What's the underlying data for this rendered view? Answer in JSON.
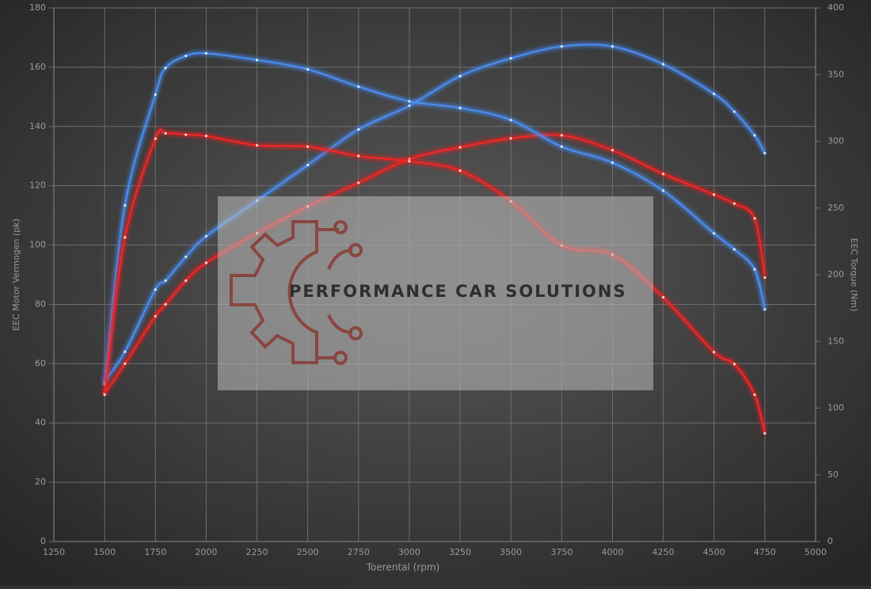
{
  "chart_data": {
    "type": "line",
    "xlabel": "Toerental (rpm)",
    "ylabel": "EEC Motor Vermogen (pk)",
    "y2label": "EEC Torque (Nm)",
    "watermark": "PERFORMANCE CAR SOLUTIONS",
    "x": [
      1500,
      1600,
      1750,
      1800,
      1900,
      2000,
      2250,
      2500,
      2750,
      3000,
      3250,
      3500,
      3750,
      4000,
      4250,
      4500,
      4600,
      4700,
      4750
    ],
    "series": [
      {
        "color": "#4a8cf0",
        "axis": "y",
        "values": [
          54,
          64,
          85,
          88,
          96,
          103,
          115,
          127,
          139,
          147,
          157,
          163,
          167,
          167,
          161,
          151,
          145,
          137,
          131
        ]
      },
      {
        "color": "#f02828",
        "axis": "y",
        "values": [
          50,
          60,
          76,
          80,
          88,
          94,
          104,
          113,
          121,
          129,
          133,
          136,
          137,
          132,
          124,
          117,
          114,
          109,
          89
        ]
      },
      {
        "color": "#4a8cf0",
        "axis": "y2",
        "values": [
          118,
          252,
          335,
          355,
          364,
          366,
          361,
          354,
          341,
          330,
          325,
          316,
          296,
          284,
          263,
          231,
          219,
          204,
          174
        ]
      },
      {
        "color": "#f02828",
        "axis": "y2",
        "values": [
          110,
          228,
          302,
          306,
          305,
          304,
          297,
          296,
          289,
          285,
          278,
          255,
          222,
          215,
          183,
          142,
          133,
          110,
          81
        ]
      }
    ],
    "xlim": [
      1250,
      5000
    ],
    "xticks": [
      1250,
      1500,
      1750,
      2000,
      2250,
      2500,
      2750,
      3000,
      3250,
      3500,
      3750,
      4000,
      4250,
      4500,
      4750,
      5000
    ],
    "ylim": [
      0,
      180
    ],
    "yticks": [
      0,
      20,
      40,
      60,
      80,
      100,
      120,
      140,
      160,
      180
    ],
    "y2lim": [
      0,
      400
    ],
    "y2ticks": [
      0,
      50,
      100,
      150,
      200,
      250,
      300,
      350,
      400
    ],
    "grid": true
  }
}
